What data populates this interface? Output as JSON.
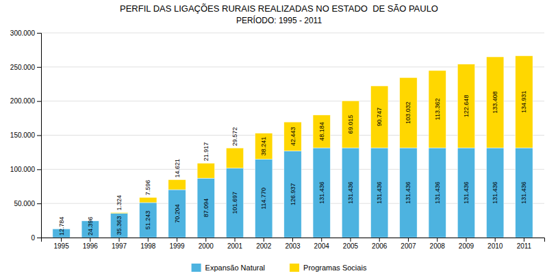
{
  "chart_data": {
    "type": "bar",
    "stacked": true,
    "title": "PERFIL DAS LIGAÇÕES RURAIS REALIZADAS NO ESTADO  DE SÃO PAULO",
    "subtitle": "PERÍODO: 1995 - 2011",
    "categories": [
      "1995",
      "1996",
      "1997",
      "1998",
      "1999",
      "2000",
      "2001",
      "2002",
      "2003",
      "2004",
      "2005",
      "2006",
      "2007",
      "2008",
      "2009",
      "2010",
      "2011"
    ],
    "series": [
      {
        "name": "Expansão Natural",
        "color": "#4DB3E0",
        "values": [
          12784,
          24396,
          35363,
          51243,
          70204,
          87094,
          101697,
          114770,
          126937,
          131436,
          131436,
          131436,
          131436,
          131436,
          131436,
          131436,
          131436
        ],
        "value_labels": [
          "12.784",
          "24.396",
          "35.363",
          "51.243",
          "70.204",
          "87.094",
          "101.697",
          "114.770",
          "126.937",
          "131.436",
          "131.436",
          "131.436",
          "131.436",
          "131.436",
          "131.436",
          "131.436",
          "131.436"
        ]
      },
      {
        "name": "Programas Sociais",
        "color": "#FFD700",
        "values": [
          0,
          0,
          1324,
          7596,
          14621,
          21917,
          29572,
          38241,
          42443,
          48184,
          69015,
          90747,
          103032,
          113362,
          122648,
          133408,
          134931
        ],
        "value_labels": [
          null,
          null,
          "1.324",
          "7.596",
          "14.621",
          "21.917",
          "29.572",
          "38.241",
          "42.443",
          "48.184",
          "69.015",
          "90.747",
          "103.032",
          "113.362",
          "122.648",
          "133.408",
          "134.931"
        ]
      }
    ],
    "ylim": [
      0,
      300000
    ],
    "yticks": [
      0,
      {
        "value": 50000,
        "label": "50.000"
      },
      {
        "value": 100000,
        "label": "100.000"
      },
      {
        "value": 150000,
        "label": "150.000"
      },
      {
        "value": 200000,
        "label": "200.000"
      },
      {
        "value": 250000,
        "label": "250.000"
      },
      {
        "value": 300000,
        "label": "300.000"
      }
    ],
    "grid": true,
    "legend": "bottom",
    "data_labels": true
  }
}
